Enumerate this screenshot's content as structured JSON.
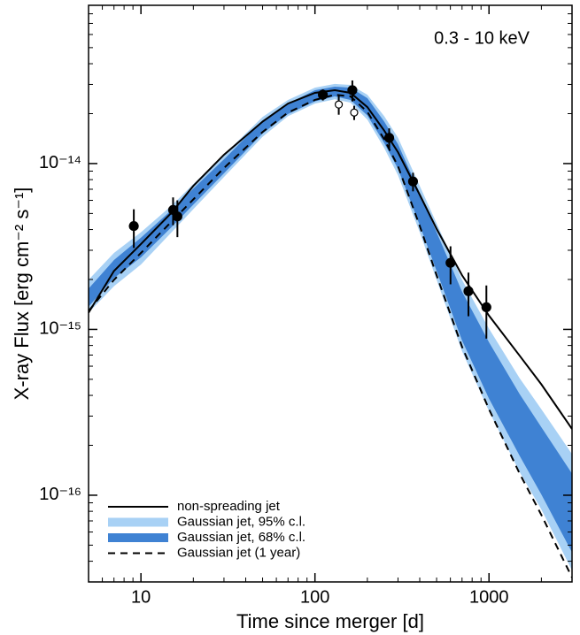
{
  "chart_data": {
    "type": "line",
    "annotation": "0.3 - 10 keV",
    "xlabel": "Time since merger [d]",
    "ylabel": "X-ray Flux [erg cm⁻² s⁻¹]",
    "xlog": true,
    "ylog": true,
    "xlim": [
      5,
      3000
    ],
    "ylim": [
      3e-17,
      9e-14
    ],
    "xticks": [
      10,
      100,
      1000
    ],
    "yticks": [
      {
        "value": 1e-16,
        "label": "10⁻¹⁶"
      },
      {
        "value": 1e-15,
        "label": "10⁻¹⁵"
      },
      {
        "value": 1e-14,
        "label": "10⁻¹⁴"
      }
    ],
    "xminor_ticks": [
      6,
      7,
      8,
      9,
      20,
      30,
      40,
      50,
      60,
      70,
      80,
      90,
      200,
      300,
      400,
      500,
      600,
      700,
      800,
      900,
      2000,
      3000
    ],
    "yminor_ticks": [
      4e-17,
      5e-17,
      6e-17,
      7e-17,
      8e-17,
      9e-17,
      2e-16,
      3e-16,
      4e-16,
      5e-16,
      6e-16,
      7e-16,
      8e-16,
      9e-16,
      2e-15,
      3e-15,
      4e-15,
      5e-15,
      6e-15,
      7e-15,
      8e-15,
      9e-15,
      2e-14,
      3e-14,
      4e-14,
      5e-14,
      6e-14,
      7e-14,
      8e-14,
      9e-14
    ],
    "legend": "lower left",
    "x": [
      5,
      7,
      10,
      15,
      20,
      30,
      50,
      70,
      100,
      130,
      160,
      200,
      250,
      300,
      400,
      500,
      700,
      1000,
      1500,
      2000,
      3000
    ],
    "series": [
      {
        "name": "non-spreading jet",
        "color": "#000000",
        "style": "solid",
        "values": [
          1.26e-15,
          2.25e-15,
          3.27e-15,
          5.06e-15,
          7.33e-15,
          1.13e-14,
          1.79e-14,
          2.3e-14,
          2.67e-14,
          2.77e-14,
          2.67e-14,
          2.19e-14,
          1.58e-14,
          1.17e-14,
          6.48e-15,
          4.04e-15,
          2.12e-15,
          1.21e-15,
          6.94e-16,
          4.66e-16,
          2.51e-16
        ]
      },
      {
        "name": "Gaussian jet, 95% c.l.",
        "color": "#a8d1f5",
        "style": "band",
        "upper": [
          1.99e-15,
          2.89e-15,
          3.85e-15,
          5.58e-15,
          7.52e-15,
          1.13e-14,
          1.91e-14,
          2.42e-14,
          2.87e-14,
          3.02e-14,
          2.98e-14,
          2.6e-14,
          1.93e-14,
          1.43e-14,
          7.33e-15,
          4.36e-15,
          1.99e-15,
          1.01e-15,
          5.08e-16,
          3.3e-16,
          1.77e-16
        ],
        "lower": [
          1.26e-15,
          1.82e-15,
          2.46e-15,
          3.85e-15,
          5.31e-15,
          8.3e-15,
          1.45e-14,
          1.93e-14,
          2.3e-14,
          2.44e-14,
          2.33e-14,
          1.84e-14,
          1.24e-14,
          8.51e-15,
          3.85e-15,
          1.99e-15,
          7.38e-16,
          3.21e-16,
          1.38e-16,
          8.2e-17,
          3.52e-17
        ]
      },
      {
        "name": "Gaussian jet, 68% c.l.",
        "color": "#3f82d3",
        "style": "band",
        "upper": [
          1.76e-15,
          2.62e-15,
          3.57e-15,
          5.25e-15,
          7.06e-15,
          1.06e-14,
          1.82e-14,
          2.3e-14,
          2.77e-14,
          2.91e-14,
          2.87e-14,
          2.48e-14,
          1.79e-14,
          1.31e-14,
          6.64e-15,
          3.85e-15,
          1.69e-15,
          8.36e-16,
          4.07e-16,
          2.57e-16,
          1.35e-16
        ],
        "lower": [
          1.37e-15,
          2.04e-15,
          2.72e-15,
          4.14e-15,
          5.65e-15,
          8.73e-15,
          1.52e-14,
          1.99e-14,
          2.37e-14,
          2.54e-14,
          2.42e-14,
          1.95e-14,
          1.33e-14,
          9.29e-15,
          4.25e-15,
          2.25e-15,
          8.57e-16,
          3.82e-16,
          1.73e-16,
          1.01e-16,
          4.52e-17
        ]
      },
      {
        "name": "Gaussian jet (1 year)",
        "color": "#000000",
        "style": "dashed",
        "values": [
          1.29e-15,
          1.99e-15,
          2.89e-15,
          4.47e-15,
          6.08e-15,
          9.4e-15,
          1.55e-14,
          2.03e-14,
          2.42e-14,
          2.6e-14,
          2.54e-14,
          2.05e-14,
          1.4e-14,
          9.63e-15,
          4.2e-15,
          2.12e-15,
          7.85e-16,
          3.3e-16,
          1.35e-16,
          7.6e-17,
          3.19e-17
        ]
      }
    ],
    "points": [
      {
        "filled": true,
        "color": "#000000",
        "x": [
          9.1,
          15.3,
          16.2,
          111,
          164,
          267,
          366,
          601,
          762,
          966
        ],
        "values": [
          4.2e-15,
          5.25e-15,
          4.8e-15,
          2.6e-14,
          2.77e-14,
          1.43e-14,
          7.8e-15,
          2.52e-15,
          1.7e-15,
          1.36e-15
        ],
        "errors": [
          1.1e-15,
          1e-15,
          1.2e-15,
          2e-15,
          4e-15,
          2e-15,
          1e-15,
          6.5e-16,
          5e-16,
          4.8e-16
        ]
      },
      {
        "filled": false,
        "color": "#000000",
        "x": [
          137,
          168
        ],
        "values": [
          2.27e-14,
          2.03e-14
        ],
        "errors": [
          3e-15,
          2e-15
        ]
      }
    ]
  }
}
